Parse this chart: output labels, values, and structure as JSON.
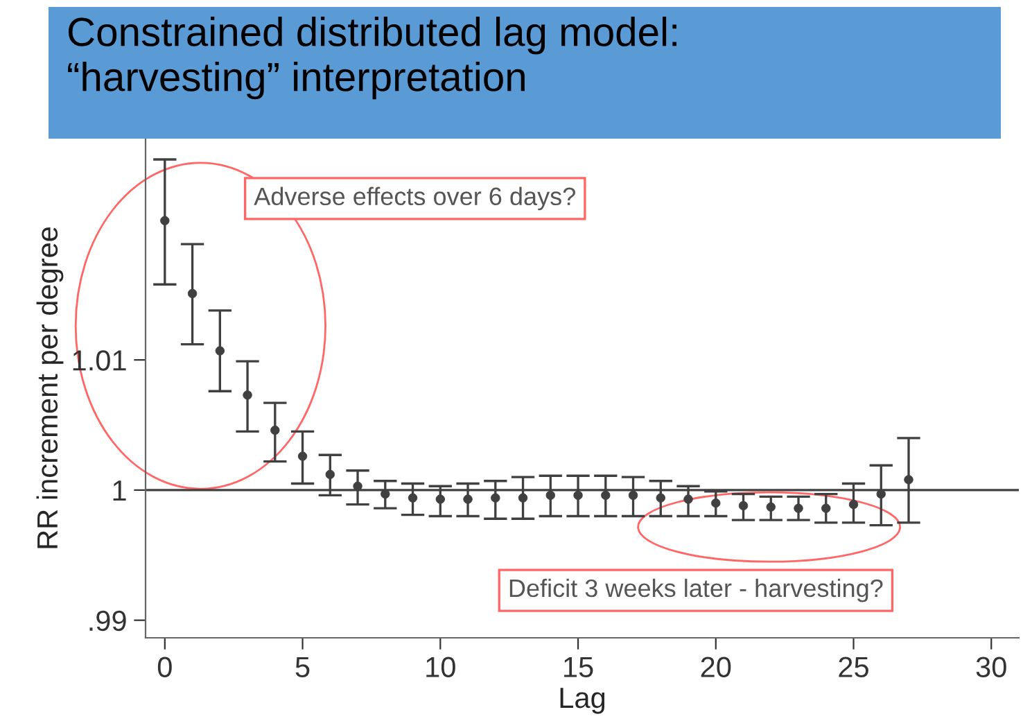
{
  "chart_data": {
    "type": "scatter",
    "title": "Constrained distributed lag model:\n“harvesting” interpretation",
    "xlabel": "Lag",
    "ylabel": "RR increment per degree",
    "x": [
      0,
      1,
      2,
      3,
      4,
      5,
      6,
      7,
      8,
      9,
      10,
      11,
      12,
      13,
      14,
      15,
      16,
      17,
      18,
      19,
      20,
      21,
      22,
      23,
      24,
      25,
      26,
      27
    ],
    "series": [
      {
        "color": "#404040",
        "values": [
          1.0207,
          1.0151,
          1.0107,
          1.0073,
          1.0046,
          1.0026,
          1.0012,
          1.0003,
          0.9997,
          0.9994,
          0.9993,
          0.9993,
          0.9994,
          0.9994,
          0.9996,
          0.9996,
          0.9996,
          0.9996,
          0.9994,
          0.9993,
          0.999,
          0.9988,
          0.9987,
          0.9986,
          0.9986,
          0.9989,
          0.9997,
          1.0008
        ],
        "errors": [
          [
            1.0158,
            1.0254
          ],
          [
            1.0112,
            1.0189
          ],
          [
            1.0076,
            1.0138
          ],
          [
            1.0045,
            1.0099
          ],
          [
            1.0022,
            1.0067
          ],
          [
            1.0005,
            1.0045
          ],
          [
            0.9996,
            1.0027
          ],
          [
            0.9989,
            1.0015
          ],
          [
            0.9986,
            1.0007
          ],
          [
            0.9981,
            1.0005
          ],
          [
            0.998,
            1.0003
          ],
          [
            0.998,
            1.0005
          ],
          [
            0.9978,
            1.0007
          ],
          [
            0.9978,
            1.001
          ],
          [
            0.998,
            1.0011
          ],
          [
            0.998,
            1.0011
          ],
          [
            0.998,
            1.0011
          ],
          [
            0.998,
            1.001
          ],
          [
            0.998,
            1.0007
          ],
          [
            0.998,
            1.0003
          ],
          [
            0.998,
            0.9999
          ],
          [
            0.9977,
            0.9997
          ],
          [
            0.9977,
            0.9995
          ],
          [
            0.9977,
            0.9995
          ],
          [
            0.9975,
            0.9997
          ],
          [
            0.9975,
            1.0005
          ],
          [
            0.9973,
            1.0019
          ],
          [
            0.9975,
            1.004
          ]
        ]
      }
    ],
    "marker": "circle",
    "xlim": [
      -0.7,
      31
    ],
    "xticks": [
      0,
      5,
      10,
      15,
      20,
      25,
      30
    ],
    "ylim": [
      0.98865,
      1.027
    ],
    "yticks": [
      {
        "value": 0.99,
        "label": ".99"
      },
      1,
      1.01
    ],
    "ref_lines": [
      {
        "axis": "y",
        "value": 1,
        "color": "#404040"
      }
    ],
    "annotations": [
      "Adverse effects over 6 days?",
      "Deficit 3 weeks later - harvesting?"
    ],
    "grid": false,
    "legend": false
  }
}
